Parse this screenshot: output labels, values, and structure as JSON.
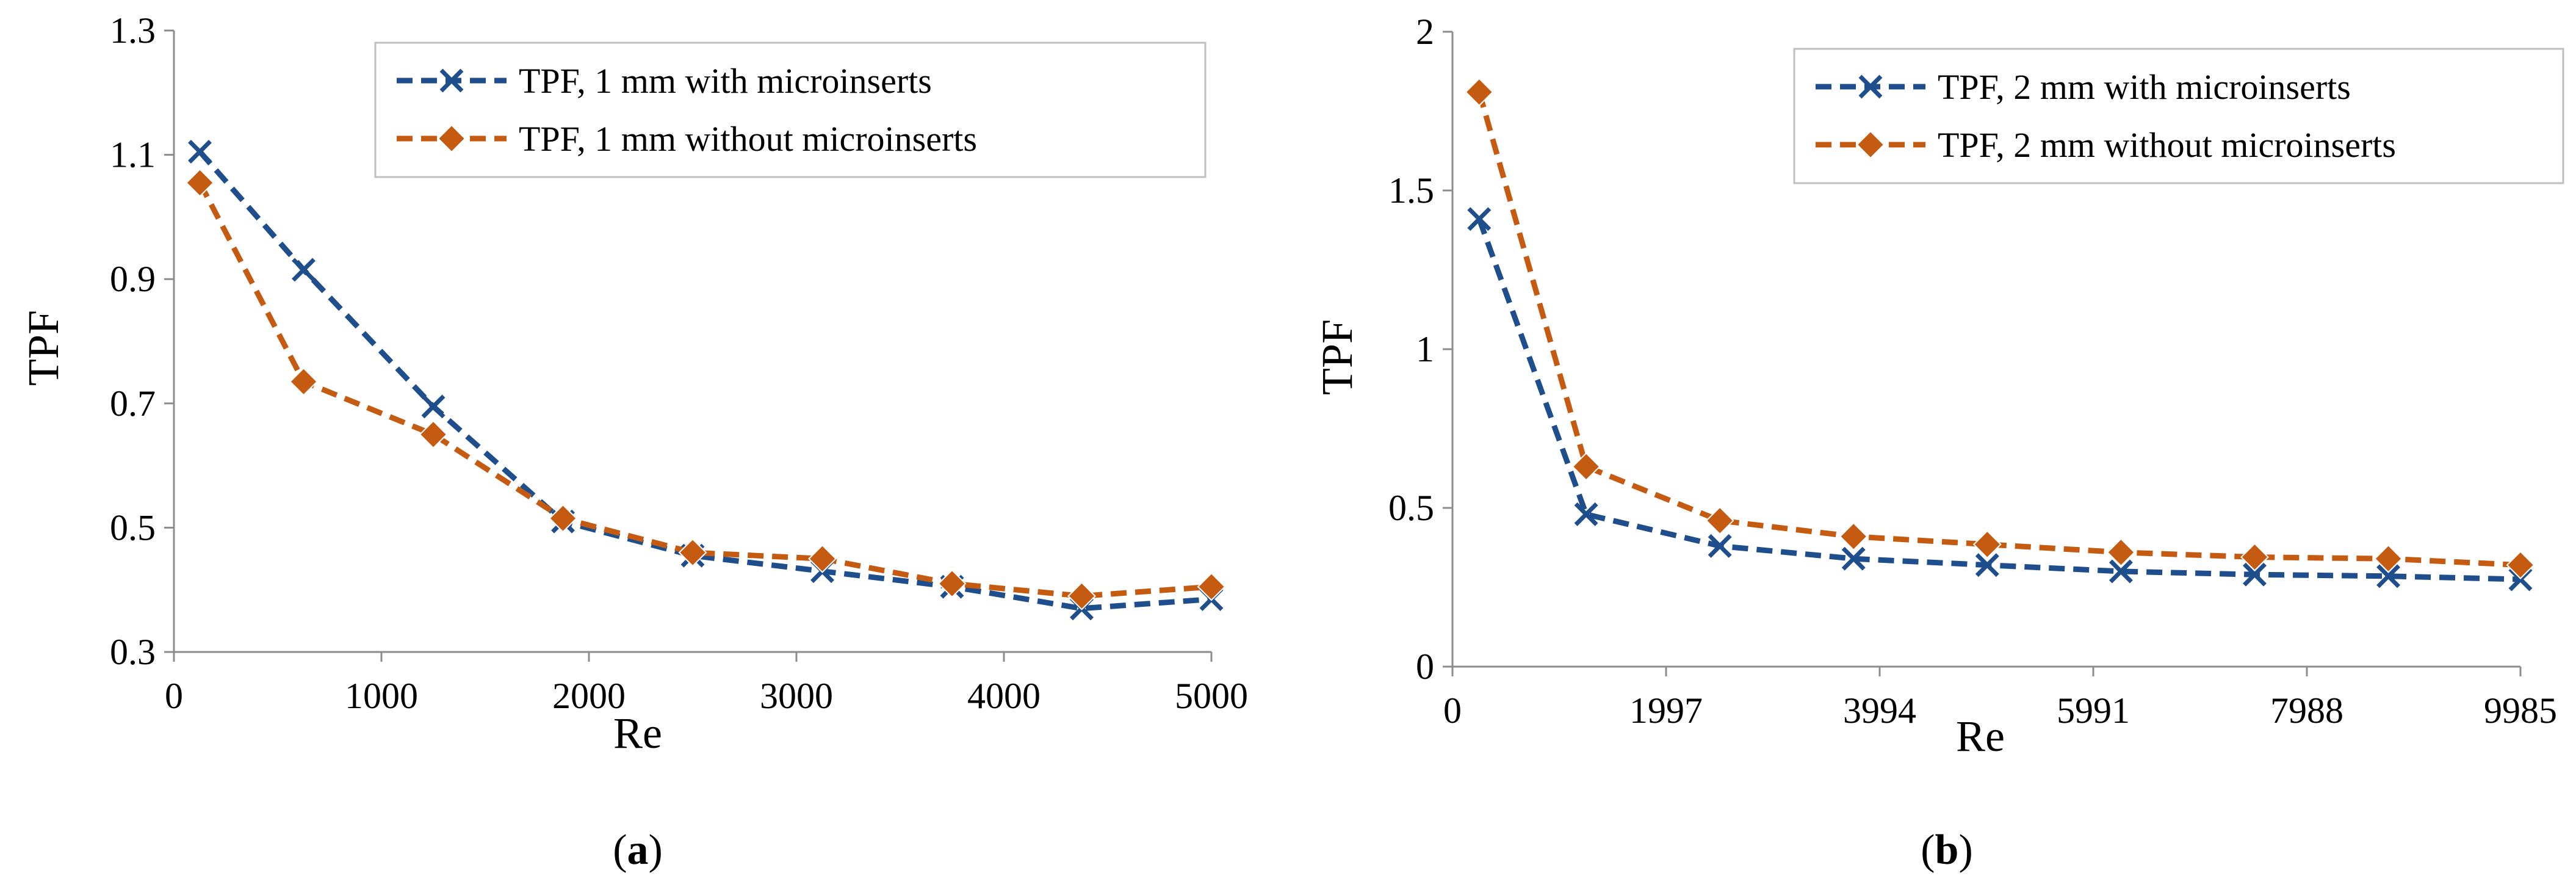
{
  "chart_data": [
    {
      "type": "line",
      "panel_label": "a",
      "title": "",
      "xlabel": "Re",
      "ylabel": "TPF",
      "xlim": [
        0,
        5000
      ],
      "ylim": [
        0.3,
        1.3
      ],
      "xticks": [
        0,
        1000,
        2000,
        3000,
        4000,
        5000
      ],
      "yticks": [
        0.3,
        0.5,
        0.7,
        0.9,
        1.1,
        1.3
      ],
      "xtick_labels": [
        "0",
        "1000",
        "2000",
        "3000",
        "4000",
        "5000"
      ],
      "ytick_labels": [
        "0.3",
        "0.5",
        "0.7",
        "0.9",
        "1.1",
        "1.3"
      ],
      "grid": false,
      "legend_position": "top-right",
      "series": [
        {
          "name": "TPF, 1 mm with microinserts",
          "color": "#1f4e8c",
          "marker": "x",
          "x": [
            125,
            625,
            1250,
            1875,
            2500,
            3125,
            3750,
            4375,
            5000
          ],
          "values": [
            1.105,
            0.915,
            0.695,
            0.51,
            0.455,
            0.43,
            0.405,
            0.37,
            0.385
          ]
        },
        {
          "name": "TPF, 1 mm without microinserts",
          "color": "#c55a11",
          "marker": "diamond",
          "x": [
            125,
            625,
            1250,
            1875,
            2500,
            3125,
            3750,
            4375,
            5000
          ],
          "values": [
            1.055,
            0.735,
            0.65,
            0.515,
            0.46,
            0.45,
            0.41,
            0.39,
            0.405
          ]
        }
      ]
    },
    {
      "type": "line",
      "panel_label": "b",
      "title": "",
      "xlabel": "Re",
      "ylabel": "TPF",
      "xlim": [
        0,
        9985
      ],
      "ylim": [
        0,
        2
      ],
      "xticks": [
        0,
        1997,
        3994,
        5991,
        7988,
        9985
      ],
      "yticks": [
        0,
        0.5,
        1,
        1.5,
        2
      ],
      "xtick_labels": [
        "0",
        "1997",
        "3994",
        "5991",
        "7988",
        "9985"
      ],
      "ytick_labels": [
        "0",
        "0.5",
        "1",
        "1.5",
        "2"
      ],
      "grid": false,
      "legend_position": "top-right",
      "series": [
        {
          "name": "TPF, 2 mm with microinserts",
          "color": "#1f4e8c",
          "marker": "x",
          "x": [
            250,
            1250,
            2500,
            3750,
            5000,
            6250,
            7500,
            8750,
            9985
          ],
          "values": [
            1.41,
            0.48,
            0.38,
            0.34,
            0.32,
            0.3,
            0.29,
            0.285,
            0.275
          ]
        },
        {
          "name": "TPF, 2 mm without microinserts",
          "color": "#c55a11",
          "marker": "diamond",
          "x": [
            250,
            1250,
            2500,
            3750,
            5000,
            6250,
            7500,
            8750,
            9985
          ],
          "values": [
            1.81,
            0.63,
            0.46,
            0.41,
            0.385,
            0.36,
            0.345,
            0.34,
            0.32
          ]
        }
      ]
    }
  ]
}
